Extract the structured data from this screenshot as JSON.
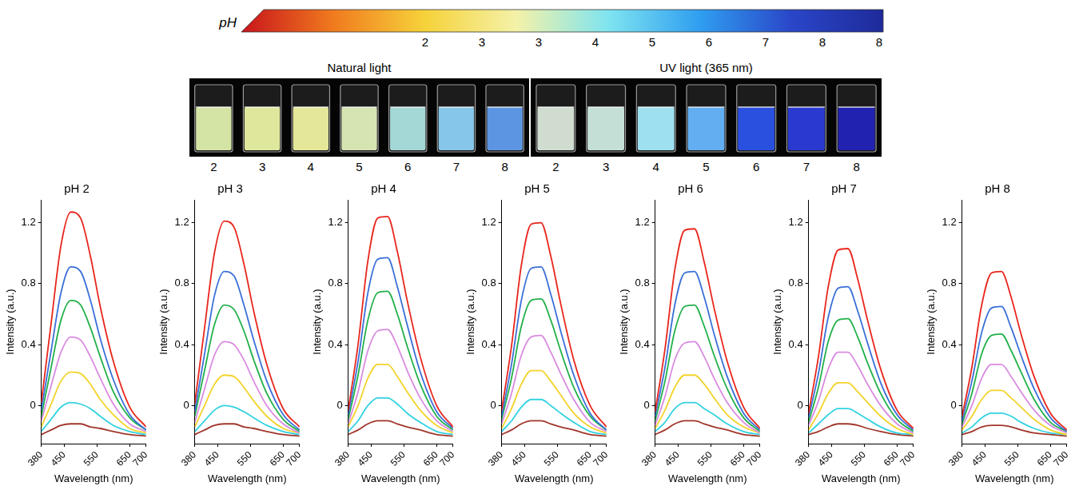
{
  "colorbar": {
    "title": "pH",
    "labels": [
      2,
      3,
      3,
      4,
      5,
      6,
      7,
      8,
      8
    ],
    "colors": [
      "#c8141c",
      "#f07a1e",
      "#f6d23a",
      "#f4f2a8",
      "#7fe4f0",
      "#2f9ef0",
      "#2a46c8",
      "#1e2a9a"
    ]
  },
  "photos": [
    {
      "title": "Natural light",
      "labels": [
        2,
        3,
        4,
        5,
        6,
        7,
        8
      ],
      "colors": [
        "#d4e4a4",
        "#dfe79c",
        "#e4e79a",
        "#d6e4b2",
        "#a4d8d6",
        "#86c6ea",
        "#5c96e2"
      ]
    },
    {
      "title": "UV light (365 nm)",
      "labels": [
        2,
        3,
        4,
        5,
        6,
        7,
        8
      ],
      "colors": [
        "#cfdccf",
        "#c4e0d6",
        "#9ee0f0",
        "#62aef0",
        "#2a50e0",
        "#2a3ad0",
        "#2222b0"
      ]
    }
  ],
  "chart_data": [
    {
      "type": "line",
      "title": "pH 2",
      "x_label": "Wavelength (nm)",
      "y_label": "Intensity (a.u.)",
      "x": [
        380,
        410,
        440,
        470,
        500,
        530,
        560,
        600,
        650,
        700
      ],
      "xlim": [
        380,
        700
      ],
      "xticks": [
        380,
        450,
        550,
        650,
        700
      ],
      "ylim": [
        -0.25,
        1.35
      ],
      "yticks": [
        0,
        0.4,
        0.8,
        1.2
      ],
      "grid": false,
      "series": [
        {
          "color": "#e8261c",
          "values": [
            0.02,
            0.54,
            1.05,
            1.27,
            1.23,
            0.98,
            0.65,
            0.29,
            -0.01,
            -0.14
          ]
        },
        {
          "color": "#3a6fd8",
          "values": [
            -0.03,
            0.36,
            0.74,
            0.91,
            0.88,
            0.69,
            0.44,
            0.17,
            -0.06,
            -0.16
          ]
        },
        {
          "color": "#22b04a",
          "values": [
            -0.07,
            0.25,
            0.56,
            0.69,
            0.66,
            0.51,
            0.32,
            0.09,
            -0.08,
            -0.16
          ]
        },
        {
          "color": "#d98be0",
          "values": [
            -0.1,
            0.13,
            0.35,
            0.45,
            0.43,
            0.32,
            0.18,
            0.01,
            -0.12,
            -0.17
          ]
        },
        {
          "color": "#f2d32a",
          "values": [
            -0.14,
            0.01,
            0.16,
            0.22,
            0.21,
            0.14,
            0.04,
            -0.06,
            -0.15,
            -0.18
          ]
        },
        {
          "color": "#33d2e0",
          "values": [
            -0.17,
            -0.09,
            -0.01,
            0.02,
            0.01,
            -0.02,
            -0.07,
            -0.13,
            -0.17,
            -0.19
          ]
        },
        {
          "color": "#a0362b",
          "values": [
            -0.19,
            -0.16,
            -0.13,
            -0.12,
            -0.12,
            -0.14,
            -0.15,
            -0.17,
            -0.19,
            -0.2
          ]
        }
      ]
    },
    {
      "type": "line",
      "title": "pH 3",
      "x_label": "Wavelength (nm)",
      "y_label": "Intensity (a.u.)",
      "x": [
        380,
        410,
        440,
        470,
        500,
        530,
        560,
        600,
        650,
        700
      ],
      "xlim": [
        380,
        700
      ],
      "xticks": [
        380,
        450,
        550,
        650,
        700
      ],
      "ylim": [
        -0.25,
        1.35
      ],
      "yticks": [
        0,
        0.4,
        0.8,
        1.2
      ],
      "grid": false,
      "series": [
        {
          "color": "#e8261c",
          "values": [
            0.01,
            0.51,
            1.0,
            1.21,
            1.17,
            0.93,
            0.62,
            0.27,
            -0.02,
            -0.14
          ]
        },
        {
          "color": "#3a6fd8",
          "values": [
            -0.04,
            0.34,
            0.72,
            0.88,
            0.85,
            0.66,
            0.43,
            0.16,
            -0.06,
            -0.16
          ]
        },
        {
          "color": "#22b04a",
          "values": [
            -0.07,
            0.23,
            0.53,
            0.66,
            0.63,
            0.49,
            0.3,
            0.08,
            -0.09,
            -0.17
          ]
        },
        {
          "color": "#d98be0",
          "values": [
            -0.11,
            0.11,
            0.33,
            0.42,
            0.4,
            0.3,
            0.16,
            0.0,
            -0.12,
            -0.18
          ]
        },
        {
          "color": "#f2d32a",
          "values": [
            -0.14,
            0.0,
            0.14,
            0.2,
            0.19,
            0.12,
            0.03,
            -0.07,
            -0.15,
            -0.18
          ]
        },
        {
          "color": "#33d2e0",
          "values": [
            -0.17,
            -0.1,
            -0.03,
            0.0,
            -0.01,
            -0.04,
            -0.08,
            -0.13,
            -0.17,
            -0.19
          ]
        },
        {
          "color": "#a0362b",
          "values": [
            -0.19,
            -0.16,
            -0.13,
            -0.12,
            -0.12,
            -0.14,
            -0.15,
            -0.17,
            -0.19,
            -0.2
          ]
        }
      ]
    },
    {
      "type": "line",
      "title": "pH 4",
      "x_label": "Wavelength (nm)",
      "y_label": "Intensity (a.u.)",
      "x": [
        380,
        410,
        440,
        470,
        500,
        530,
        560,
        600,
        650,
        700
      ],
      "xlim": [
        380,
        700
      ],
      "xticks": [
        380,
        450,
        550,
        650,
        700
      ],
      "ylim": [
        -0.25,
        1.35
      ],
      "yticks": [
        0,
        0.4,
        0.8,
        1.2
      ],
      "grid": false,
      "series": [
        {
          "color": "#e8261c",
          "values": [
            -0.03,
            0.4,
            0.95,
            1.23,
            1.24,
            1.01,
            0.69,
            0.32,
            0.0,
            -0.14
          ]
        },
        {
          "color": "#3a6fd8",
          "values": [
            -0.06,
            0.29,
            0.74,
            0.96,
            0.97,
            0.78,
            0.53,
            0.22,
            -0.04,
            -0.15
          ]
        },
        {
          "color": "#22b04a",
          "values": [
            -0.09,
            0.2,
            0.56,
            0.74,
            0.75,
            0.6,
            0.39,
            0.14,
            -0.07,
            -0.16
          ]
        },
        {
          "color": "#d98be0",
          "values": [
            -0.12,
            0.09,
            0.36,
            0.49,
            0.5,
            0.39,
            0.23,
            0.05,
            -0.1,
            -0.17
          ]
        },
        {
          "color": "#f2d32a",
          "values": [
            -0.14,
            0.0,
            0.18,
            0.27,
            0.27,
            0.19,
            0.09,
            -0.03,
            -0.13,
            -0.18
          ]
        },
        {
          "color": "#33d2e0",
          "values": [
            -0.17,
            -0.1,
            0.0,
            0.05,
            0.05,
            0.01,
            -0.05,
            -0.11,
            -0.17,
            -0.19
          ]
        },
        {
          "color": "#a0362b",
          "values": [
            -0.19,
            -0.16,
            -0.12,
            -0.1,
            -0.1,
            -0.12,
            -0.14,
            -0.16,
            -0.19,
            -0.2
          ]
        }
      ]
    },
    {
      "type": "line",
      "title": "pH 5",
      "x_label": "Wavelength (nm)",
      "y_label": "Intensity (a.u.)",
      "x": [
        380,
        410,
        440,
        470,
        500,
        530,
        560,
        600,
        650,
        700
      ],
      "xlim": [
        380,
        700
      ],
      "xticks": [
        380,
        450,
        550,
        650,
        700
      ],
      "ylim": [
        -0.25,
        1.35
      ],
      "yticks": [
        0,
        0.4,
        0.8,
        1.2
      ],
      "grid": false,
      "series": [
        {
          "color": "#e8261c",
          "values": [
            -0.03,
            0.39,
            0.92,
            1.19,
            1.2,
            0.98,
            0.67,
            0.3,
            0.0,
            -0.14
          ]
        },
        {
          "color": "#3a6fd8",
          "values": [
            -0.07,
            0.27,
            0.69,
            0.9,
            0.91,
            0.73,
            0.49,
            0.2,
            -0.05,
            -0.16
          ]
        },
        {
          "color": "#22b04a",
          "values": [
            -0.09,
            0.18,
            0.52,
            0.69,
            0.7,
            0.56,
            0.36,
            0.12,
            -0.07,
            -0.16
          ]
        },
        {
          "color": "#d98be0",
          "values": [
            -0.12,
            0.08,
            0.33,
            0.45,
            0.46,
            0.35,
            0.21,
            0.04,
            -0.11,
            -0.17
          ]
        },
        {
          "color": "#f2d32a",
          "values": [
            -0.15,
            -0.02,
            0.14,
            0.23,
            0.23,
            0.16,
            0.07,
            -0.05,
            -0.14,
            -0.18
          ]
        },
        {
          "color": "#33d2e0",
          "values": [
            -0.17,
            -0.1,
            -0.01,
            0.04,
            0.04,
            0.0,
            -0.05,
            -0.11,
            -0.17,
            -0.19
          ]
        },
        {
          "color": "#a0362b",
          "values": [
            -0.19,
            -0.16,
            -0.12,
            -0.1,
            -0.1,
            -0.12,
            -0.14,
            -0.16,
            -0.19,
            -0.2
          ]
        }
      ]
    },
    {
      "type": "line",
      "title": "pH 6",
      "x_label": "Wavelength (nm)",
      "y_label": "Intensity (a.u.)",
      "x": [
        380,
        410,
        440,
        470,
        500,
        530,
        560,
        600,
        650,
        700
      ],
      "xlim": [
        380,
        700
      ],
      "xticks": [
        380,
        450,
        550,
        650,
        700
      ],
      "ylim": [
        -0.25,
        1.35
      ],
      "yticks": [
        0,
        0.4,
        0.8,
        1.2
      ],
      "grid": false,
      "series": [
        {
          "color": "#e8261c",
          "values": [
            -0.04,
            0.37,
            0.89,
            1.15,
            1.16,
            0.94,
            0.64,
            0.29,
            -0.01,
            -0.15
          ]
        },
        {
          "color": "#3a6fd8",
          "values": [
            -0.07,
            0.25,
            0.66,
            0.87,
            0.88,
            0.71,
            0.47,
            0.19,
            -0.05,
            -0.16
          ]
        },
        {
          "color": "#22b04a",
          "values": [
            -0.1,
            0.16,
            0.49,
            0.65,
            0.66,
            0.52,
            0.33,
            0.11,
            -0.08,
            -0.17
          ]
        },
        {
          "color": "#d98be0",
          "values": [
            -0.13,
            0.06,
            0.3,
            0.41,
            0.42,
            0.32,
            0.18,
            0.02,
            -0.11,
            -0.18
          ]
        },
        {
          "color": "#f2d32a",
          "values": [
            -0.15,
            -0.03,
            0.12,
            0.2,
            0.2,
            0.14,
            0.05,
            -0.06,
            -0.14,
            -0.18
          ]
        },
        {
          "color": "#33d2e0",
          "values": [
            -0.17,
            -0.11,
            -0.02,
            0.02,
            0.02,
            -0.02,
            -0.06,
            -0.12,
            -0.17,
            -0.19
          ]
        },
        {
          "color": "#a0362b",
          "values": [
            -0.19,
            -0.16,
            -0.12,
            -0.1,
            -0.1,
            -0.12,
            -0.14,
            -0.16,
            -0.19,
            -0.2
          ]
        }
      ]
    },
    {
      "type": "line",
      "title": "pH 7",
      "x_label": "Wavelength (nm)",
      "y_label": "Intensity (a.u.)",
      "x": [
        380,
        410,
        440,
        470,
        500,
        530,
        560,
        600,
        650,
        700
      ],
      "xlim": [
        380,
        700
      ],
      "xticks": [
        380,
        450,
        550,
        650,
        700
      ],
      "ylim": [
        -0.25,
        1.35
      ],
      "yticks": [
        0,
        0.4,
        0.8,
        1.2
      ],
      "grid": false,
      "series": [
        {
          "color": "#e8261c",
          "values": [
            -0.05,
            0.32,
            0.78,
            1.02,
            1.03,
            0.83,
            0.56,
            0.24,
            -0.03,
            -0.15
          ]
        },
        {
          "color": "#3a6fd8",
          "values": [
            -0.08,
            0.21,
            0.58,
            0.77,
            0.78,
            0.62,
            0.41,
            0.15,
            -0.06,
            -0.16
          ]
        },
        {
          "color": "#22b04a",
          "values": [
            -0.11,
            0.12,
            0.42,
            0.56,
            0.57,
            0.45,
            0.28,
            0.08,
            -0.09,
            -0.17
          ]
        },
        {
          "color": "#d98be0",
          "values": [
            -0.13,
            0.03,
            0.24,
            0.35,
            0.35,
            0.26,
            0.14,
            0.0,
            -0.12,
            -0.18
          ]
        },
        {
          "color": "#f2d32a",
          "values": [
            -0.16,
            -0.05,
            0.08,
            0.15,
            0.15,
            0.09,
            0.02,
            -0.07,
            -0.15,
            -0.19
          ]
        },
        {
          "color": "#33d2e0",
          "values": [
            -0.18,
            -0.12,
            -0.06,
            -0.02,
            -0.02,
            -0.05,
            -0.09,
            -0.14,
            -0.18,
            -0.19
          ]
        },
        {
          "color": "#a0362b",
          "values": [
            -0.19,
            -0.17,
            -0.14,
            -0.12,
            -0.12,
            -0.13,
            -0.15,
            -0.17,
            -0.19,
            -0.2
          ]
        }
      ]
    },
    {
      "type": "line",
      "title": "pH 8",
      "x_label": "Wavelength (nm)",
      "y_label": "Intensity (a.u.)",
      "x": [
        380,
        410,
        440,
        470,
        500,
        530,
        560,
        600,
        650,
        700
      ],
      "xlim": [
        380,
        700
      ],
      "xticks": [
        380,
        450,
        550,
        650,
        700
      ],
      "ylim": [
        -0.25,
        1.35
      ],
      "yticks": [
        0,
        0.4,
        0.8,
        1.2
      ],
      "grid": false,
      "series": [
        {
          "color": "#e8261c",
          "values": [
            -0.07,
            0.25,
            0.66,
            0.87,
            0.88,
            0.71,
            0.47,
            0.19,
            -0.05,
            -0.16
          ]
        },
        {
          "color": "#3a6fd8",
          "values": [
            -0.1,
            0.16,
            0.48,
            0.64,
            0.65,
            0.51,
            0.33,
            0.11,
            -0.08,
            -0.17
          ]
        },
        {
          "color": "#22b04a",
          "values": [
            -0.12,
            0.08,
            0.34,
            0.46,
            0.47,
            0.36,
            0.22,
            0.04,
            -0.11,
            -0.17
          ]
        },
        {
          "color": "#d98be0",
          "values": [
            -0.14,
            0.0,
            0.18,
            0.27,
            0.27,
            0.19,
            0.09,
            -0.03,
            -0.13,
            -0.18
          ]
        },
        {
          "color": "#f2d32a",
          "values": [
            -0.16,
            -0.07,
            0.04,
            0.1,
            0.1,
            0.05,
            -0.01,
            -0.09,
            -0.16,
            -0.19
          ]
        },
        {
          "color": "#33d2e0",
          "values": [
            -0.18,
            -0.14,
            -0.08,
            -0.05,
            -0.05,
            -0.07,
            -0.11,
            -0.15,
            -0.18,
            -0.19
          ]
        },
        {
          "color": "#a0362b",
          "values": [
            -0.19,
            -0.17,
            -0.14,
            -0.13,
            -0.13,
            -0.14,
            -0.16,
            -0.18,
            -0.19,
            -0.2
          ]
        }
      ]
    }
  ]
}
